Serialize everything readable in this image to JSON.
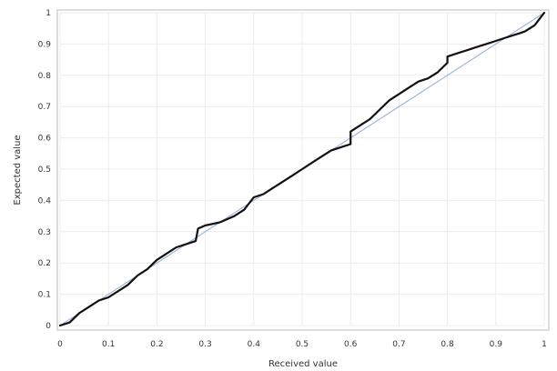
{
  "chart_data": {
    "type": "line",
    "title": "",
    "xlabel": "Received value",
    "ylabel": "Expected value",
    "xlim": [
      0,
      1
    ],
    "ylim": [
      0,
      1
    ],
    "grid": true,
    "x_ticks": [
      "0",
      "0.1",
      "0.2",
      "0.3",
      "0.4",
      "0.5",
      "0.6",
      "0.7",
      "0.8",
      "0.9",
      "1"
    ],
    "y_ticks": [
      "0",
      "0.1",
      "0.2",
      "0.3",
      "0.4",
      "0.5",
      "0.6",
      "0.7",
      "0.8",
      "0.9",
      "1"
    ],
    "series": [
      {
        "color": "#9fb4e0",
        "x": [
          0,
          1
        ],
        "y": [
          0,
          1
        ]
      },
      {
        "color": "#111111",
        "x": [
          0.0,
          0.02,
          0.04,
          0.06,
          0.08,
          0.1,
          0.12,
          0.14,
          0.16,
          0.18,
          0.2,
          0.22,
          0.24,
          0.26,
          0.28,
          0.285,
          0.3,
          0.33,
          0.36,
          0.38,
          0.4,
          0.42,
          0.44,
          0.46,
          0.48,
          0.5,
          0.52,
          0.54,
          0.56,
          0.58,
          0.6,
          0.6,
          0.62,
          0.64,
          0.66,
          0.68,
          0.7,
          0.72,
          0.74,
          0.76,
          0.78,
          0.8,
          0.8,
          0.82,
          0.84,
          0.86,
          0.88,
          0.9,
          0.92,
          0.94,
          0.95,
          0.96,
          0.98,
          1.0
        ],
        "y": [
          0.0,
          0.01,
          0.04,
          0.06,
          0.08,
          0.09,
          0.11,
          0.13,
          0.16,
          0.18,
          0.21,
          0.23,
          0.25,
          0.26,
          0.27,
          0.31,
          0.32,
          0.33,
          0.35,
          0.37,
          0.41,
          0.42,
          0.44,
          0.46,
          0.48,
          0.5,
          0.52,
          0.54,
          0.56,
          0.57,
          0.58,
          0.62,
          0.64,
          0.66,
          0.69,
          0.72,
          0.74,
          0.76,
          0.78,
          0.79,
          0.81,
          0.84,
          0.86,
          0.87,
          0.88,
          0.89,
          0.9,
          0.91,
          0.92,
          0.93,
          0.935,
          0.94,
          0.96,
          1.0
        ]
      }
    ]
  }
}
